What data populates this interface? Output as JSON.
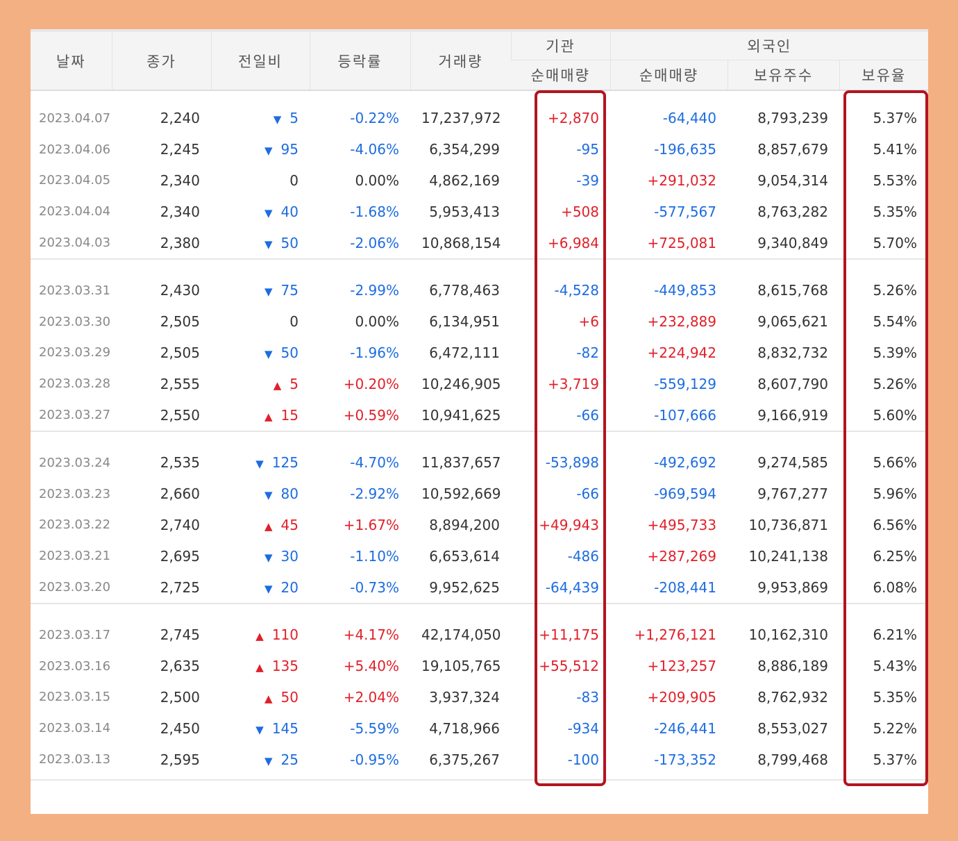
{
  "header": {
    "date": "날짜",
    "close": "종가",
    "change": "전일비",
    "change_rate": "등락률",
    "volume": "거래량",
    "institution_group": "기관",
    "foreign_group": "외국인",
    "inst_net": "순매매량",
    "foreign_net": "순매매량",
    "foreign_shares": "보유주수",
    "foreign_ratio": "보유율"
  },
  "colors": {
    "up": "#e0202a",
    "down": "#1d6ce0",
    "highlight": "#b31420"
  },
  "groups": [
    [
      {
        "date": "2023.04.07",
        "close": "2,240",
        "dir": "down",
        "chg": "5",
        "rate": "-0.22%",
        "vol": "17,237,972",
        "inst": "+2,870",
        "fnet": "-64,440",
        "fshares": "8,793,239",
        "fratio": "5.37%"
      },
      {
        "date": "2023.04.06",
        "close": "2,245",
        "dir": "down",
        "chg": "95",
        "rate": "-4.06%",
        "vol": "6,354,299",
        "inst": "-95",
        "fnet": "-196,635",
        "fshares": "8,857,679",
        "fratio": "5.41%"
      },
      {
        "date": "2023.04.05",
        "close": "2,340",
        "dir": "none",
        "chg": "0",
        "rate": "0.00%",
        "vol": "4,862,169",
        "inst": "-39",
        "fnet": "+291,032",
        "fshares": "9,054,314",
        "fratio": "5.53%"
      },
      {
        "date": "2023.04.04",
        "close": "2,340",
        "dir": "down",
        "chg": "40",
        "rate": "-1.68%",
        "vol": "5,953,413",
        "inst": "+508",
        "fnet": "-577,567",
        "fshares": "8,763,282",
        "fratio": "5.35%"
      },
      {
        "date": "2023.04.03",
        "close": "2,380",
        "dir": "down",
        "chg": "50",
        "rate": "-2.06%",
        "vol": "10,868,154",
        "inst": "+6,984",
        "fnet": "+725,081",
        "fshares": "9,340,849",
        "fratio": "5.70%"
      }
    ],
    [
      {
        "date": "2023.03.31",
        "close": "2,430",
        "dir": "down",
        "chg": "75",
        "rate": "-2.99%",
        "vol": "6,778,463",
        "inst": "-4,528",
        "fnet": "-449,853",
        "fshares": "8,615,768",
        "fratio": "5.26%"
      },
      {
        "date": "2023.03.30",
        "close": "2,505",
        "dir": "none",
        "chg": "0",
        "rate": "0.00%",
        "vol": "6,134,951",
        "inst": "+6",
        "fnet": "+232,889",
        "fshares": "9,065,621",
        "fratio": "5.54%"
      },
      {
        "date": "2023.03.29",
        "close": "2,505",
        "dir": "down",
        "chg": "50",
        "rate": "-1.96%",
        "vol": "6,472,111",
        "inst": "-82",
        "fnet": "+224,942",
        "fshares": "8,832,732",
        "fratio": "5.39%"
      },
      {
        "date": "2023.03.28",
        "close": "2,555",
        "dir": "up",
        "chg": "5",
        "rate": "+0.20%",
        "vol": "10,246,905",
        "inst": "+3,719",
        "fnet": "-559,129",
        "fshares": "8,607,790",
        "fratio": "5.26%"
      },
      {
        "date": "2023.03.27",
        "close": "2,550",
        "dir": "up",
        "chg": "15",
        "rate": "+0.59%",
        "vol": "10,941,625",
        "inst": "-66",
        "fnet": "-107,666",
        "fshares": "9,166,919",
        "fratio": "5.60%"
      }
    ],
    [
      {
        "date": "2023.03.24",
        "close": "2,535",
        "dir": "down",
        "chg": "125",
        "rate": "-4.70%",
        "vol": "11,837,657",
        "inst": "-53,898",
        "fnet": "-492,692",
        "fshares": "9,274,585",
        "fratio": "5.66%"
      },
      {
        "date": "2023.03.23",
        "close": "2,660",
        "dir": "down",
        "chg": "80",
        "rate": "-2.92%",
        "vol": "10,592,669",
        "inst": "-66",
        "fnet": "-969,594",
        "fshares": "9,767,277",
        "fratio": "5.96%"
      },
      {
        "date": "2023.03.22",
        "close": "2,740",
        "dir": "up",
        "chg": "45",
        "rate": "+1.67%",
        "vol": "8,894,200",
        "inst": "+49,943",
        "fnet": "+495,733",
        "fshares": "10,736,871",
        "fratio": "6.56%"
      },
      {
        "date": "2023.03.21",
        "close": "2,695",
        "dir": "down",
        "chg": "30",
        "rate": "-1.10%",
        "vol": "6,653,614",
        "inst": "-486",
        "fnet": "+287,269",
        "fshares": "10,241,138",
        "fratio": "6.25%"
      },
      {
        "date": "2023.03.20",
        "close": "2,725",
        "dir": "down",
        "chg": "20",
        "rate": "-0.73%",
        "vol": "9,952,625",
        "inst": "-64,439",
        "fnet": "-208,441",
        "fshares": "9,953,869",
        "fratio": "6.08%"
      }
    ],
    [
      {
        "date": "2023.03.17",
        "close": "2,745",
        "dir": "up",
        "chg": "110",
        "rate": "+4.17%",
        "vol": "42,174,050",
        "inst": "+11,175",
        "fnet": "+1,276,121",
        "fshares": "10,162,310",
        "fratio": "6.21%"
      },
      {
        "date": "2023.03.16",
        "close": "2,635",
        "dir": "up",
        "chg": "135",
        "rate": "+5.40%",
        "vol": "19,105,765",
        "inst": "+55,512",
        "fnet": "+123,257",
        "fshares": "8,886,189",
        "fratio": "5.43%"
      },
      {
        "date": "2023.03.15",
        "close": "2,500",
        "dir": "up",
        "chg": "50",
        "rate": "+2.04%",
        "vol": "3,937,324",
        "inst": "-83",
        "fnet": "+209,905",
        "fshares": "8,762,932",
        "fratio": "5.35%"
      },
      {
        "date": "2023.03.14",
        "close": "2,450",
        "dir": "down",
        "chg": "145",
        "rate": "-5.59%",
        "vol": "4,718,966",
        "inst": "-934",
        "fnet": "-246,441",
        "fshares": "8,553,027",
        "fratio": "5.22%"
      },
      {
        "date": "2023.03.13",
        "close": "2,595",
        "dir": "down",
        "chg": "25",
        "rate": "-0.95%",
        "vol": "6,375,267",
        "inst": "-100",
        "fnet": "-173,352",
        "fshares": "8,799,468",
        "fratio": "5.37%"
      }
    ]
  ]
}
